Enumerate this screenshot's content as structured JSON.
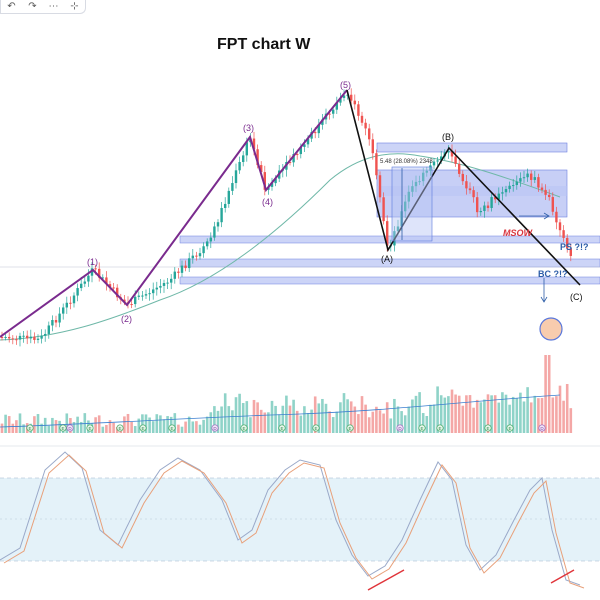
{
  "toolbar": {
    "icons": [
      "undo-icon",
      "redo-icon",
      "grid-icon",
      "crosshair-icon"
    ],
    "glyphs": [
      "↶",
      "↷",
      "⋯",
      "⊹"
    ]
  },
  "chart_data": {
    "type": "candlestick",
    "title": "FPT chart W",
    "wave_labels": [
      "(1)",
      "(2)",
      "(3)",
      "(4)",
      "(5)"
    ],
    "correction_labels": [
      "(A)",
      "(B)",
      "(C)"
    ],
    "annotations": {
      "msow": "MSOW",
      "ps": "PS ?!?",
      "bc": "BC ?!?",
      "measure": "5.48 (28.08%) 2348"
    },
    "markers": [
      "E",
      "D"
    ],
    "indicator": "stochastic",
    "colors": {
      "up": "#26a69a",
      "down": "#ef5350",
      "volume_up": "#8fd3c8",
      "volume_down": "#f4a7a6",
      "wave_line": "#7a2b8e",
      "zone": "#7b8fe8",
      "ma": "#6fb8a8",
      "stoch_k": "#9aa9c9",
      "stoch_d": "#e8a07a",
      "stoch_band": "#d8ecf7",
      "divergence": "#e0343a"
    }
  }
}
